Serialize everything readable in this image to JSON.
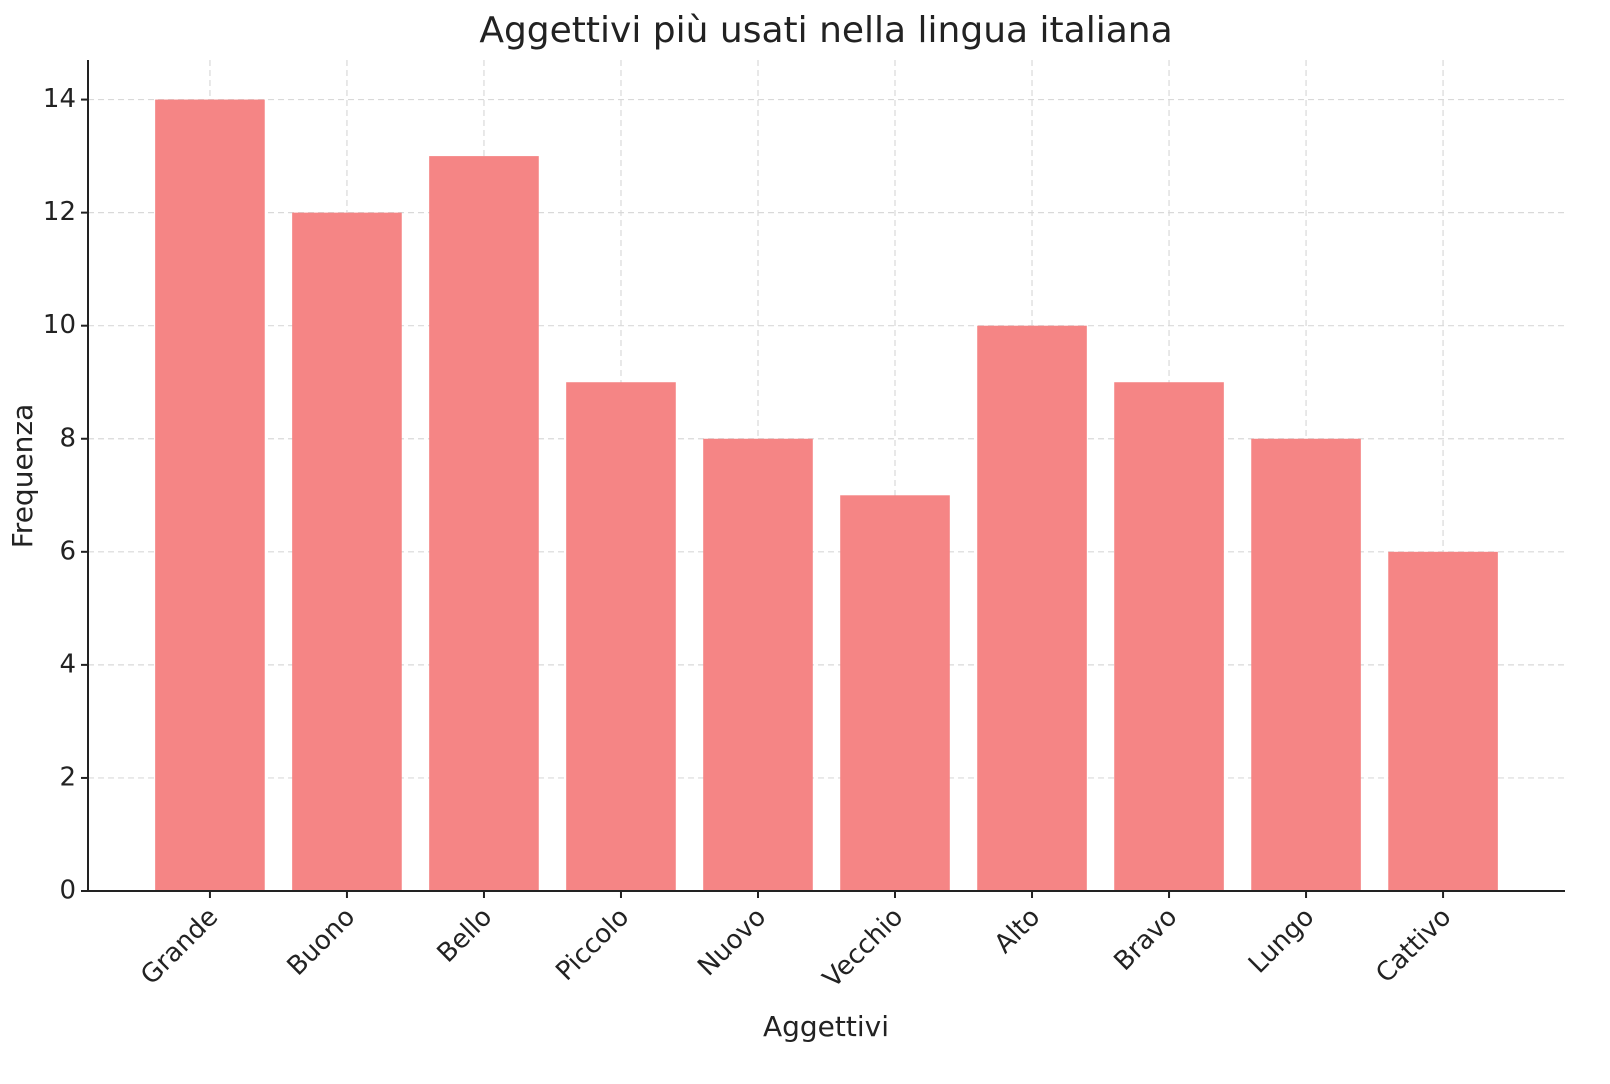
{
  "chart_data": {
    "type": "bar",
    "title": "Aggettivi più usati nella lingua italiana",
    "x_label": "Aggettivi",
    "y_label": "Frequenza",
    "categories": [
      "Grande",
      "Buono",
      "Bello",
      "Piccolo",
      "Nuovo",
      "Vecchio",
      "Alto",
      "Bravo",
      "Lungo",
      "Cattivo"
    ],
    "values": [
      14,
      12,
      13,
      9,
      8,
      7,
      10,
      9,
      8,
      6
    ],
    "color": "#f58585",
    "ylim": [
      0,
      14.7
    ],
    "yticks": [
      0,
      2,
      4,
      6,
      8,
      10,
      12,
      14
    ],
    "grid": true
  }
}
